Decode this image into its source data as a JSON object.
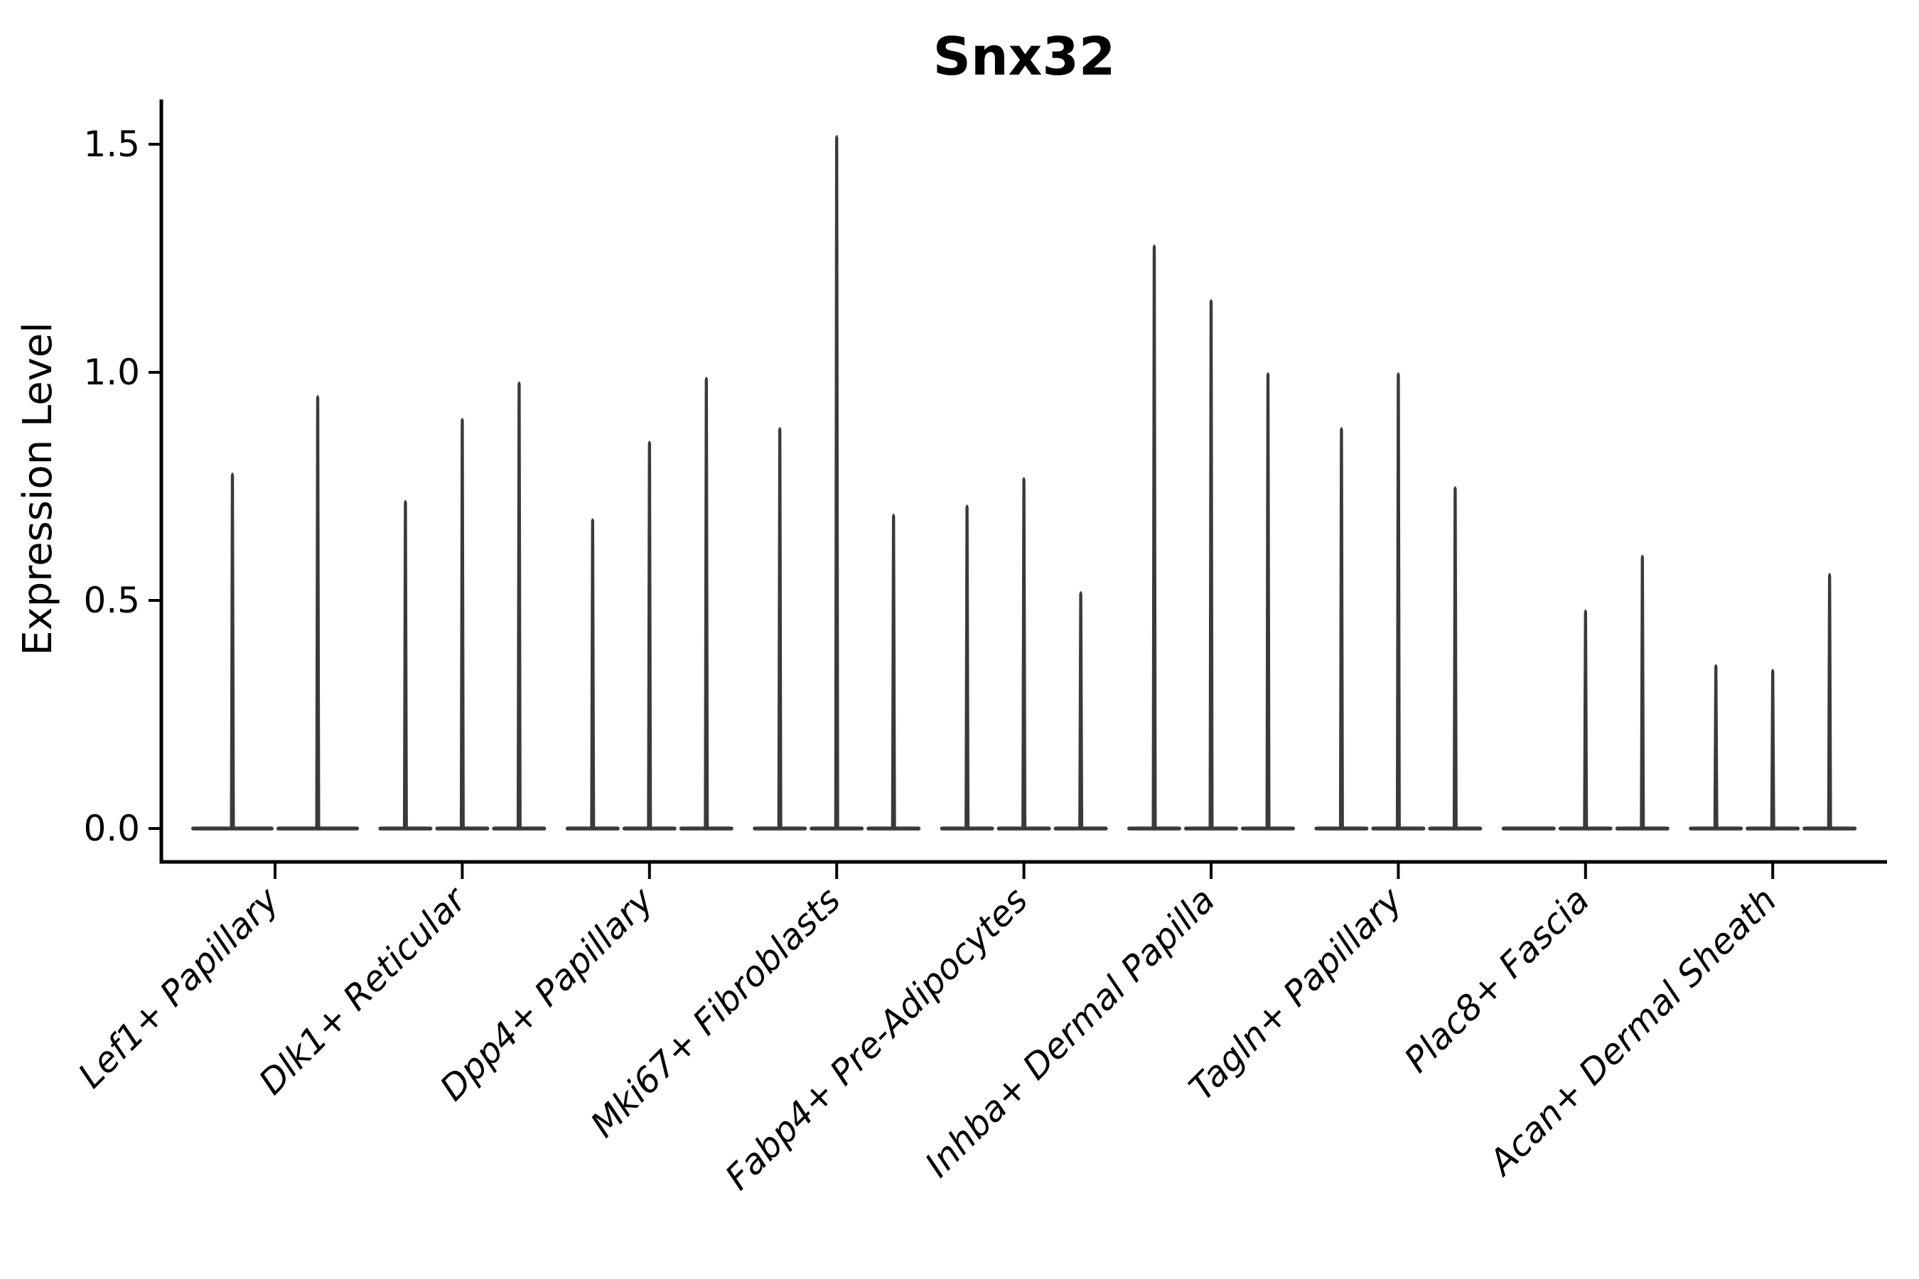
{
  "chart_data": {
    "type": "violin",
    "title": "Snx32",
    "ylabel": "Expression Level",
    "xlabel": "",
    "ylim": [
      -0.07,
      1.6
    ],
    "yticks": [
      0.0,
      0.5,
      1.0,
      1.5
    ],
    "grid": false,
    "legend": "none",
    "categories": [
      "Lef1+ Papillary",
      "Dlk1+ Reticular",
      "Dpp4+ Papillary",
      "Mki67+ Fibroblasts",
      "Fabp4+ Pre-Adipocytes",
      "Inhba+ Dermal Papilla",
      "Tagln+ Papillary",
      "Plac8+ Fascia",
      "Acan+ Dermal Sheath"
    ],
    "groups": [
      {
        "category": "Lef1+ Papillary",
        "violin_maxima": [
          0.78,
          0.95
        ]
      },
      {
        "category": "Dlk1+ Reticular",
        "violin_maxima": [
          0.72,
          0.9,
          0.98
        ]
      },
      {
        "category": "Dpp4+ Papillary",
        "violin_maxima": [
          0.68,
          0.85,
          0.99
        ]
      },
      {
        "category": "Mki67+ Fibroblasts",
        "violin_maxima": [
          0.88,
          1.52,
          0.69
        ]
      },
      {
        "category": "Fabp4+ Pre-Adipocytes",
        "violin_maxima": [
          0.71,
          0.77,
          0.52
        ]
      },
      {
        "category": "Inhba+ Dermal Papilla",
        "violin_maxima": [
          1.28,
          1.16,
          1.0
        ]
      },
      {
        "category": "Tagln+ Papillary",
        "violin_maxima": [
          0.88,
          1.0,
          0.75
        ]
      },
      {
        "category": "Plac8+ Fascia",
        "violin_maxima": [
          0.0,
          0.48,
          0.6
        ]
      },
      {
        "category": "Acan+ Dermal Sheath",
        "violin_maxima": [
          0.36,
          0.35,
          0.56
        ]
      }
    ],
    "colors": {
      "violin": "#3a3a3a",
      "axis": "#000000",
      "text": "#000000",
      "background": "#ffffff"
    }
  }
}
